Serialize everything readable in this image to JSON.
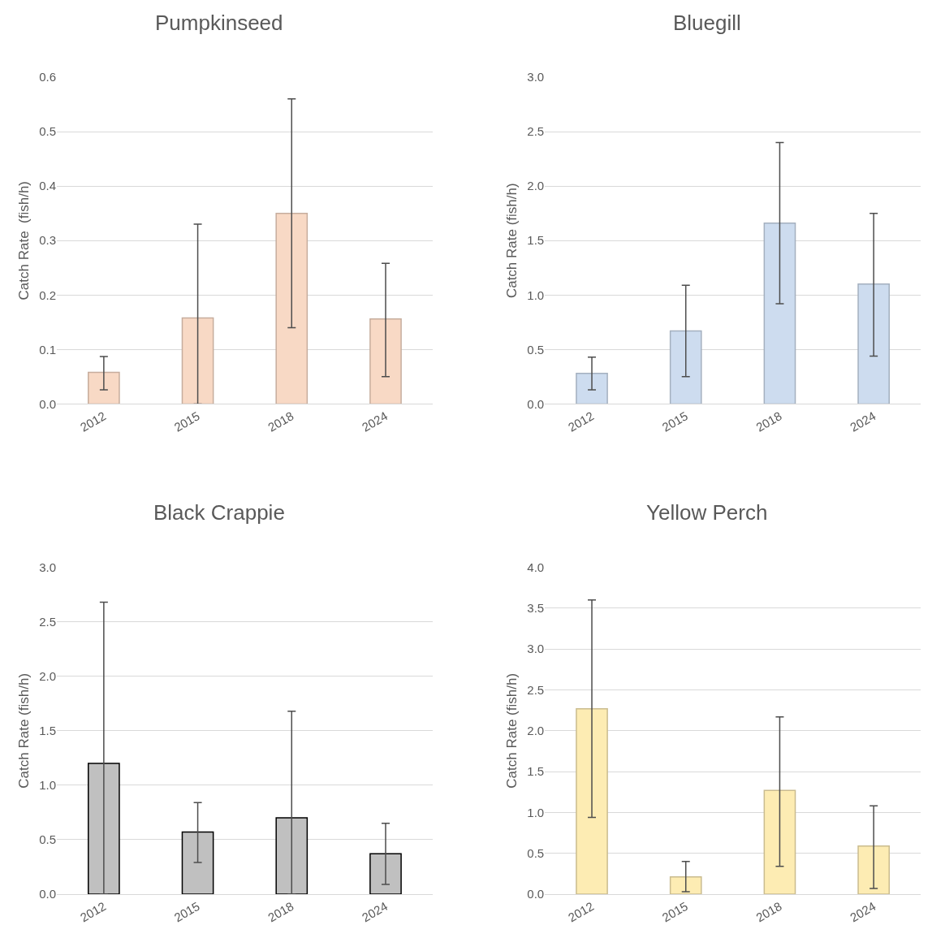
{
  "chart_data": [
    {
      "type": "bar",
      "title": "Pumpkinseed",
      "ylabel": "Catch Rate  (fish/h)",
      "categories": [
        "2012",
        "2015",
        "2018",
        "2024"
      ],
      "values": [
        0.058,
        0.158,
        0.35,
        0.156
      ],
      "color": "#f8d9c5",
      "errors": [
        [
          0.026,
          0.087
        ],
        [
          0.0,
          0.33
        ],
        [
          0.14,
          0.56
        ],
        [
          0.05,
          0.258
        ]
      ],
      "ylim": [
        0,
        0.6
      ],
      "yticks": [
        {
          "value": 0,
          "label": "0.0"
        },
        {
          "value": 0.1,
          "label": "0.1"
        },
        {
          "value": 0.2,
          "label": "0.2"
        },
        {
          "value": 0.3,
          "label": "0.3"
        },
        {
          "value": 0.4,
          "label": "0.4"
        },
        {
          "value": 0.5,
          "label": "0.5"
        },
        {
          "value": 0.6,
          "label": "0.6"
        }
      ],
      "grid": "y"
    },
    {
      "type": "bar",
      "title": "Bluegill",
      "ylabel": "Catch Rate (fish/h)",
      "categories": [
        "2012",
        "2015",
        "2018",
        "2024"
      ],
      "values": [
        0.28,
        0.67,
        1.66,
        1.1
      ],
      "color": "#cddcef",
      "errors": [
        [
          0.13,
          0.43
        ],
        [
          0.25,
          1.09
        ],
        [
          0.92,
          2.4
        ],
        [
          0.44,
          1.75
        ]
      ],
      "ylim": [
        0,
        3
      ],
      "yticks": [
        {
          "value": 0,
          "label": "0.0"
        },
        {
          "value": 0.5,
          "label": "0.5"
        },
        {
          "value": 1,
          "label": "1.0"
        },
        {
          "value": 1.5,
          "label": "1.5"
        },
        {
          "value": 2,
          "label": "2.0"
        },
        {
          "value": 2.5,
          "label": "2.5"
        },
        {
          "value": 3,
          "label": "3.0"
        }
      ],
      "grid": "y"
    },
    {
      "type": "bar",
      "title": "Black Crappie",
      "ylabel": "Catch Rate (fish/h)",
      "categories": [
        "2012",
        "2015",
        "2018",
        "2024"
      ],
      "values": [
        1.2,
        0.57,
        0.7,
        0.37
      ],
      "color": "#c0c0c0",
      "errors": [
        [
          0.0,
          2.68
        ],
        [
          0.29,
          0.84
        ],
        [
          0.0,
          1.68
        ],
        [
          0.09,
          0.65
        ]
      ],
      "ylim": [
        0,
        3
      ],
      "yticks": [
        {
          "value": 0,
          "label": "0.0"
        },
        {
          "value": 0.5,
          "label": "0.5"
        },
        {
          "value": 1,
          "label": "1.0"
        },
        {
          "value": 1.5,
          "label": "1.5"
        },
        {
          "value": 2,
          "label": "2.0"
        },
        {
          "value": 2.5,
          "label": "2.5"
        },
        {
          "value": 3,
          "label": "3.0"
        }
      ],
      "grid": "y"
    },
    {
      "type": "bar",
      "title": "Yellow Perch",
      "ylabel": "Catch Rate (fish/h)",
      "categories": [
        "2012",
        "2015",
        "2018",
        "2024"
      ],
      "values": [
        2.27,
        0.21,
        1.27,
        0.59
      ],
      "color": "#fdecb3",
      "errors": [
        [
          0.94,
          3.6
        ],
        [
          0.03,
          0.4
        ],
        [
          0.34,
          2.17
        ],
        [
          0.07,
          1.08
        ]
      ],
      "ylim": [
        0,
        4
      ],
      "yticks": [
        {
          "value": 0,
          "label": "0.0"
        },
        {
          "value": 0.5,
          "label": "0.5"
        },
        {
          "value": 1,
          "label": "1.0"
        },
        {
          "value": 1.5,
          "label": "1.5"
        },
        {
          "value": 2,
          "label": "2.0"
        },
        {
          "value": 2.5,
          "label": "2.5"
        },
        {
          "value": 3,
          "label": "3.0"
        },
        {
          "value": 3.5,
          "label": "3.5"
        },
        {
          "value": 4,
          "label": "4.0"
        }
      ],
      "grid": "y"
    }
  ]
}
